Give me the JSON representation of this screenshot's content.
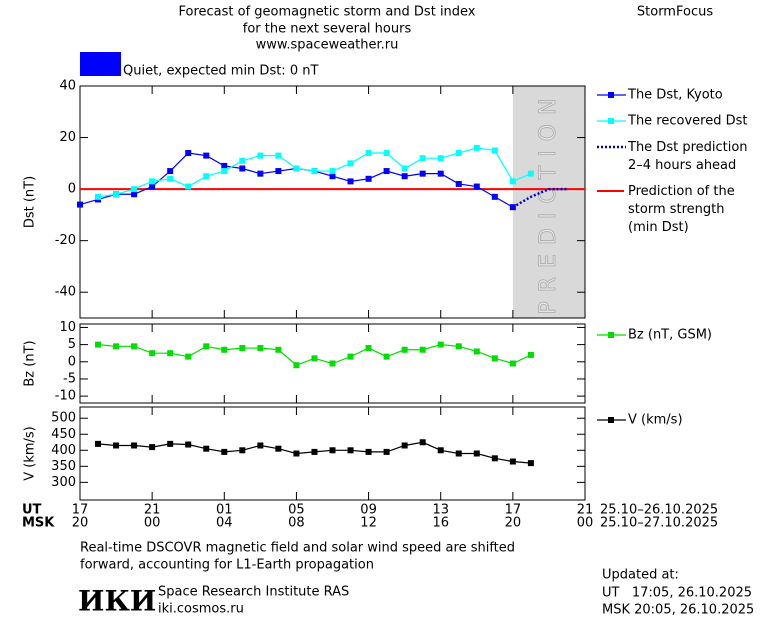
{
  "header": {
    "title_lines": [
      "Forecast of geomagnetic storm and Dst index",
      "for the next several hours",
      "www.spaceweather.ru"
    ],
    "brand": "StormFocus"
  },
  "chart_data": [
    {
      "type": "line",
      "ylabel": "Dst (nT)",
      "xlim": [
        0,
        28
      ],
      "ylim": [
        -50,
        40
      ],
      "yticks": [
        -40,
        -20,
        0,
        20,
        40
      ],
      "xticks": [
        0,
        4,
        8,
        12,
        16,
        20,
        24,
        28
      ],
      "status": {
        "color": "#0000ff",
        "label": "Quiet, expected min Dst: 0 nT"
      },
      "prediction_start": 24,
      "prediction_label": "PREDICTION",
      "min_dst": 0,
      "min_dst_color": "#ff0000",
      "min_dst_label": "Prediction of the\nstorm strength\n(min Dst)",
      "series": [
        {
          "name": "The Dst, Kyoto",
          "color": "#0000ff",
          "style": "solid",
          "markers": true,
          "x": [
            0,
            1,
            2,
            3,
            4,
            5,
            6,
            7,
            8,
            9,
            10,
            11,
            12,
            13,
            14,
            15,
            16,
            17,
            18,
            19,
            20,
            21,
            22,
            23,
            24
          ],
          "values": [
            -6,
            -4,
            -2,
            -2,
            1,
            7,
            14,
            13,
            9,
            8,
            6,
            7,
            8,
            7,
            5,
            3,
            4,
            7,
            5,
            6,
            6,
            2,
            1,
            -3,
            -7
          ]
        },
        {
          "name": "The recovered Dst",
          "color": "#00ffff",
          "style": "solid",
          "markers": true,
          "x": [
            1,
            2,
            3,
            4,
            5,
            6,
            7,
            8,
            9,
            10,
            11,
            12,
            13,
            14,
            15,
            16,
            17,
            18,
            19,
            20,
            21,
            22,
            23,
            24,
            25
          ],
          "values": [
            -3,
            -2,
            0,
            3,
            4,
            1,
            5,
            7,
            11,
            13,
            13,
            8,
            7,
            7,
            10,
            14,
            14,
            8,
            12,
            12,
            14,
            16,
            15,
            3,
            6
          ]
        },
        {
          "name": "The Dst prediction\n2–4 hours ahead",
          "color": "#0000cc",
          "style": "dotted",
          "markers": false,
          "x": [
            24,
            25,
            26,
            27
          ],
          "values": [
            -7,
            -3,
            0,
            0
          ]
        }
      ]
    },
    {
      "type": "line",
      "ylabel": "Bz (nT)",
      "xlim": [
        0,
        28
      ],
      "ylim": [
        -12,
        11
      ],
      "yticks": [
        -10,
        -5,
        0,
        5,
        10
      ],
      "xticks": [
        0,
        4,
        8,
        12,
        16,
        20,
        24,
        28
      ],
      "series": [
        {
          "name": "Bz (nT, GSM)",
          "color": "#00dd00",
          "style": "solid",
          "markers": true,
          "x": [
            1,
            2,
            3,
            4,
            5,
            6,
            7,
            8,
            9,
            10,
            11,
            12,
            13,
            14,
            15,
            16,
            17,
            18,
            19,
            20,
            21,
            22,
            23,
            24,
            25
          ],
          "values": [
            5,
            4.5,
            4.5,
            2.5,
            2.5,
            1.5,
            4.5,
            3.5,
            4,
            4,
            3.5,
            -1,
            1,
            -0.5,
            1.5,
            4,
            1.5,
            3.5,
            3.5,
            5,
            4.5,
            3,
            1,
            -0.5,
            2
          ]
        }
      ]
    },
    {
      "type": "line",
      "ylabel": "V (km/s)",
      "xlim": [
        0,
        28
      ],
      "ylim": [
        245,
        535
      ],
      "yticks": [
        300,
        350,
        400,
        450,
        500
      ],
      "xticks": [
        {
          "value": 0,
          "label": "17"
        },
        {
          "value": 4,
          "label": "21"
        },
        {
          "value": 8,
          "label": "01"
        },
        {
          "value": 12,
          "label": "05"
        },
        {
          "value": 16,
          "label": "09"
        },
        {
          "value": 20,
          "label": "13"
        },
        {
          "value": 24,
          "label": "17"
        },
        {
          "value": 28,
          "label": "21"
        }
      ],
      "xlabel": "UT",
      "date_range": "25.10–26.10.2025",
      "xticks_msk": [
        {
          "value": 0,
          "label": "20"
        },
        {
          "value": 4,
          "label": "00"
        },
        {
          "value": 8,
          "label": "04"
        },
        {
          "value": 12,
          "label": "08"
        },
        {
          "value": 16,
          "label": "12"
        },
        {
          "value": 20,
          "label": "16"
        },
        {
          "value": 24,
          "label": "20"
        },
        {
          "value": 28,
          "label": "00"
        }
      ],
      "xlabel_msk": "MSK",
      "date_range_msk": "25.10–27.10.2025",
      "series": [
        {
          "name": "V (km/s)",
          "color": "#000000",
          "style": "solid",
          "markers": true,
          "x": [
            1,
            2,
            3,
            4,
            5,
            6,
            7,
            8,
            9,
            10,
            11,
            12,
            13,
            14,
            15,
            16,
            17,
            18,
            19,
            20,
            21,
            22,
            23,
            24,
            25
          ],
          "values": [
            420,
            415,
            415,
            410,
            420,
            418,
            405,
            395,
            400,
            415,
            405,
            390,
            395,
            400,
            400,
            395,
            395,
            415,
            425,
            400,
            390,
            390,
            375,
            365,
            360
          ]
        }
      ]
    }
  ],
  "footer": {
    "note_lines": [
      "Real-time DSCOVR magnetic field and solar wind speed are shifted",
      "forward, accounting for L1-Earth propagation"
    ],
    "logo": "ИКИ",
    "institute": "Space Research Institute RAS",
    "site": "iki.cosmos.ru",
    "updated_label": "Updated at:",
    "updated_ut": "UT   17:05, 26.10.2025",
    "updated_msk": "MSK 20:05, 26.10.2025"
  }
}
